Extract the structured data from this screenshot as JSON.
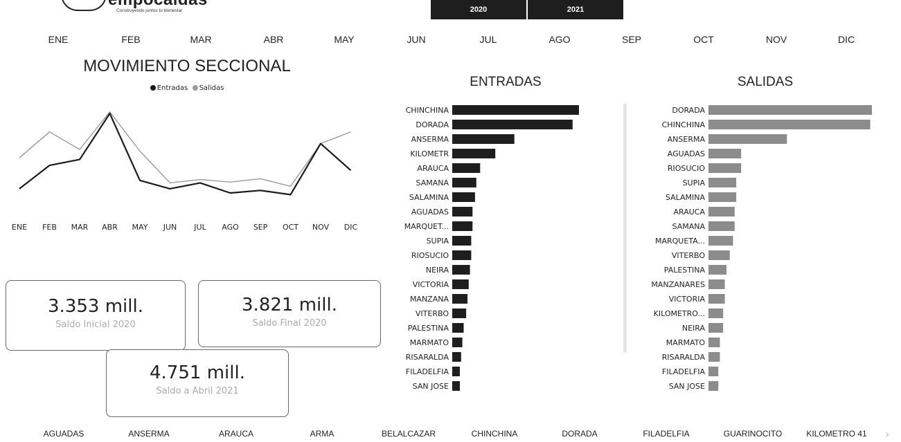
{
  "header": {
    "logo_text": "empocaldas",
    "logo_tagline": "Construyendo juntos tu bienestar",
    "years": [
      "2020",
      "2021"
    ]
  },
  "months_filter": [
    "ENE",
    "FEB",
    "MAR",
    "ABR",
    "MAY",
    "JUN",
    "JUL",
    "AGO",
    "SEP",
    "OCT",
    "NOV",
    "DIC"
  ],
  "colors": {
    "entradas": "#1a1a1a",
    "salidas": "#9a9a9a",
    "entradas_bar": "#1e1e1e",
    "salidas_bar": "#8c8c8c"
  },
  "kpis": [
    {
      "value": "3.353 mill.",
      "label": "Saldo Inicial 2020"
    },
    {
      "value": "3.821 mill.",
      "label": "Saldo Final 2020"
    },
    {
      "value": "4.751 mill.",
      "label": "Saldo a Abril 2021"
    }
  ],
  "chart_data": [
    {
      "type": "line",
      "title": "MOVIMIENTO SECCIONAL",
      "x": [
        "ENE",
        "FEB",
        "MAR",
        "ABR",
        "MAY",
        "JUN",
        "JUL",
        "AGO",
        "SEP",
        "OCT",
        "NOV",
        "DIC"
      ],
      "series": [
        {
          "name": "Entradas",
          "values": [
            10,
            38,
            45,
            100,
            20,
            10,
            17,
            5,
            8,
            3,
            64,
            32
          ]
        },
        {
          "name": "Salidas",
          "values": [
            47,
            78,
            57,
            102,
            55,
            17,
            21,
            18,
            22,
            13,
            64,
            78
          ]
        }
      ],
      "ylim": [
        0,
        110
      ],
      "legend": "top-center",
      "grid": false
    },
    {
      "type": "bar",
      "orientation": "horizontal",
      "title": "ENTRADAS",
      "categories": [
        "CHINCHINA",
        "DORADA",
        "ANSERMA",
        "KILOMETR",
        "ARAUCA",
        "SAMANA",
        "SALAMINA",
        "AGUADAS",
        "MARQUET...",
        "SUPIA",
        "RIOSUCIO",
        "NEIRA",
        "VICTORIA",
        "MANZANA",
        "VITERBO",
        "PALESTINA",
        "MARMATO",
        "RISARALDA",
        "FILADELFIA",
        "SAN JOSE"
      ],
      "values": [
        100,
        95,
        49,
        34,
        22,
        19,
        18,
        16,
        16,
        15,
        15,
        14,
        13,
        12,
        11,
        9,
        8,
        7,
        6,
        6
      ],
      "grid": false
    },
    {
      "type": "bar",
      "orientation": "horizontal",
      "title": "SALIDAS",
      "categories": [
        "DORADA",
        "CHINCHINA",
        "ANSERMA",
        "AGUADAS",
        "RIOSUCIO",
        "SUPIA",
        "SALAMINA",
        "ARAUCA",
        "SAMANA",
        "MARQUETA...",
        "VITERBO",
        "PALESTINA",
        "MANZANARES",
        "VICTORIA",
        "KILOMETRO...",
        "NEIRA",
        "MARMATO",
        "RISARALDA",
        "FILADELFIA",
        "SAN JOSE"
      ],
      "values": [
        100,
        99,
        48,
        20,
        20,
        17,
        17,
        16,
        16,
        15,
        13,
        11,
        10,
        10,
        9,
        9,
        7,
        7,
        6,
        6
      ],
      "grid": false
    }
  ],
  "municipio_filter": [
    "AGUADAS",
    "ANSERMA",
    "ARAUCA",
    "ARMA",
    "BELALCAZAR",
    "CHINCHINA",
    "DORADA",
    "FILADELFIA",
    "GUARINOCITO",
    "KILOMETRO 41"
  ],
  "icons": {
    "slicer_next": "chevron-right-icon"
  }
}
